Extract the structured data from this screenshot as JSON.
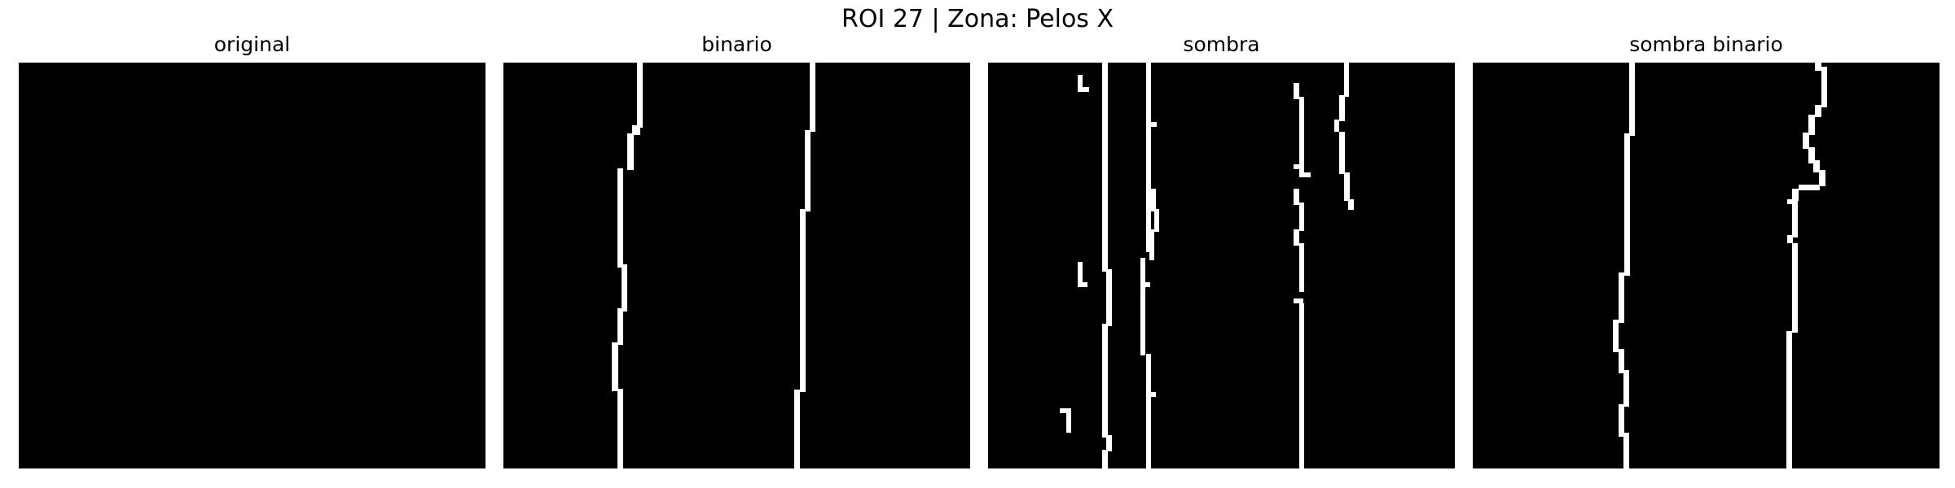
{
  "figure": {
    "title": "ROI 27 | Zona:  Pelos X"
  },
  "panels": [
    {
      "title": "original"
    },
    {
      "title": "binario"
    },
    {
      "title": "sombra"
    },
    {
      "title": "sombra binario"
    }
  ],
  "colors": {
    "background": "#000000",
    "foreground": "#ffffff",
    "page": "#ffffff"
  }
}
